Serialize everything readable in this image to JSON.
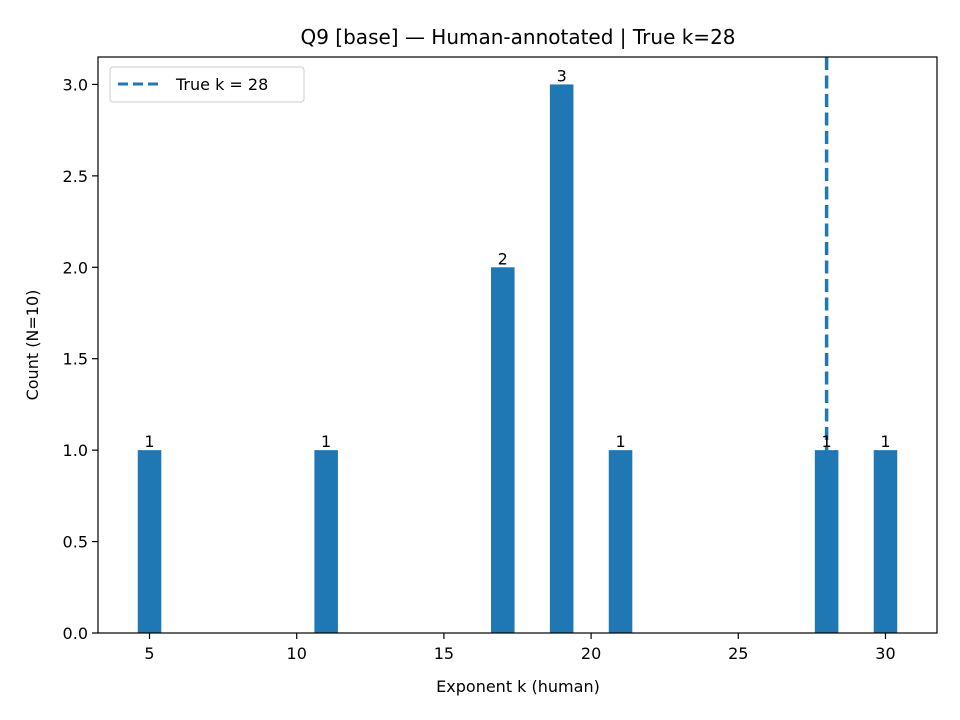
{
  "chart_data": {
    "type": "bar",
    "title": "Q9 [base] — Human-annotated | True k=28",
    "xlabel": "Exponent k (human)",
    "ylabel": "Count (N=10)",
    "xlim": [
      3.25,
      31.75
    ],
    "ylim": [
      0,
      3.15
    ],
    "xticks": [
      5,
      10,
      15,
      20,
      25,
      30
    ],
    "yticks": [
      0.0,
      0.5,
      1.0,
      1.5,
      2.0,
      2.5,
      3.0
    ],
    "xtick_labels": [
      "5",
      "10",
      "15",
      "20",
      "25",
      "30"
    ],
    "ytick_labels": [
      "0.0",
      "0.5",
      "1.0",
      "1.5",
      "2.0",
      "2.5",
      "3.0"
    ],
    "bar_width": 0.8,
    "bar_color": "#1f77b4",
    "bars": [
      {
        "x": 5,
        "value": 1,
        "label": "1"
      },
      {
        "x": 11,
        "value": 1,
        "label": "1"
      },
      {
        "x": 17,
        "value": 2,
        "label": "2"
      },
      {
        "x": 19,
        "value": 3,
        "label": "3"
      },
      {
        "x": 21,
        "value": 1,
        "label": "1"
      },
      {
        "x": 28,
        "value": 1,
        "label": "1"
      },
      {
        "x": 30,
        "value": 1,
        "label": "1"
      }
    ],
    "reference_line": {
      "x": 28,
      "style": "dashed",
      "color": "#1f77b4",
      "legend_label": "True k = 28"
    },
    "legend_placement": "top-left",
    "grid": false
  }
}
